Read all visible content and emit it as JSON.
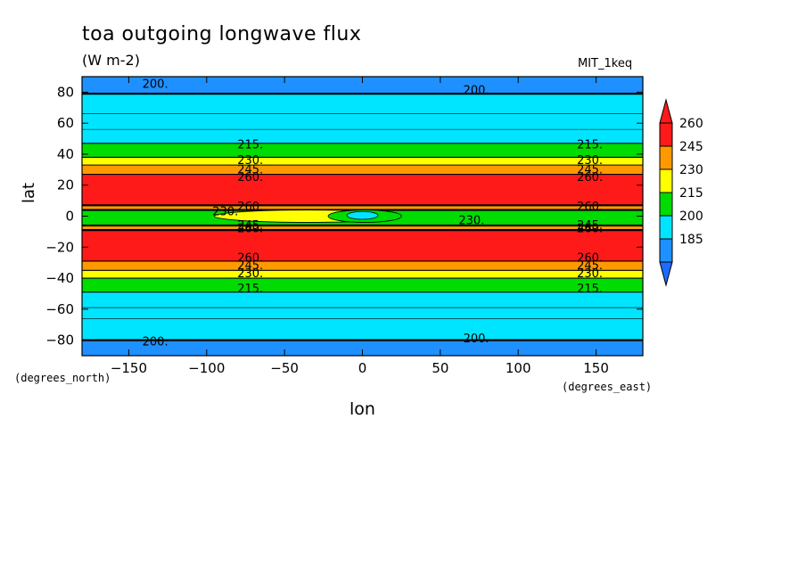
{
  "chart_data": {
    "type": "heatmap",
    "title": "toa outgoing longwave flux",
    "units": "(W m-2)",
    "run_label": "MIT_1keq",
    "xlabel": "lon",
    "ylabel": "lat",
    "x_units_label": "(degrees_east)",
    "y_units_label": "(degrees_north)",
    "xlim": [
      -180,
      180
    ],
    "ylim": [
      -90,
      90
    ],
    "x_ticks": [
      -150,
      -100,
      -50,
      0,
      50,
      100,
      150
    ],
    "y_ticks": [
      80,
      60,
      40,
      20,
      0,
      -20,
      -40,
      -60,
      -80
    ],
    "colorbar": {
      "levels": [
        185,
        200,
        215,
        230,
        245,
        260
      ],
      "colors": [
        "#1e90ff",
        "#00e5ff",
        "#00dc00",
        "#ffff00",
        "#ff9900",
        "#ff1a1a"
      ],
      "under_color": "#1e6cff",
      "over_color": "#ff1a1a"
    },
    "zonal_bands": [
      {
        "lat_from": 79,
        "lat_to": 90,
        "value_class": "<200",
        "color": "#1e90ff"
      },
      {
        "lat_from": 47,
        "lat_to": 79,
        "value_class": "200-215",
        "color": "#00e5ff"
      },
      {
        "lat_from": 38,
        "lat_to": 47,
        "value_class": "215-230",
        "color": "#00dc00"
      },
      {
        "lat_from": 33,
        "lat_to": 38,
        "value_class": "230-245",
        "color": "#ffff00"
      },
      {
        "lat_from": 27,
        "lat_to": 33,
        "value_class": "245-260",
        "color": "#ff9900"
      },
      {
        "lat_from": 7,
        "lat_to": 27,
        "value_class": ">260",
        "color": "#ff1a1a"
      },
      {
        "lat_from": 4,
        "lat_to": 7,
        "value_class": "245-260",
        "color": "#ff9900"
      },
      {
        "lat_from": -6,
        "lat_to": 4,
        "value_class": "215-230",
        "color": "#00dc00"
      },
      {
        "lat_from": -9,
        "lat_to": -6,
        "value_class": "245-260",
        "color": "#ff9900"
      },
      {
        "lat_from": -29,
        "lat_to": -9,
        "value_class": ">260",
        "color": "#ff1a1a"
      },
      {
        "lat_from": -35,
        "lat_to": -29,
        "value_class": "245-260",
        "color": "#ff9900"
      },
      {
        "lat_from": -40,
        "lat_to": -35,
        "value_class": "230-245",
        "color": "#ffff00"
      },
      {
        "lat_from": -49,
        "lat_to": -40,
        "value_class": "215-230",
        "color": "#00dc00"
      },
      {
        "lat_from": -80,
        "lat_to": -49,
        "value_class": "200-215",
        "color": "#00e5ff"
      },
      {
        "lat_from": -90,
        "lat_to": -80,
        "value_class": "<200",
        "color": "#1e90ff"
      }
    ],
    "equatorial_features": [
      {
        "type": "region",
        "lon_range": [
          -95,
          25
        ],
        "lat_range": [
          -4,
          4
        ],
        "value_class": "230-245",
        "color": "#ffff00"
      },
      {
        "type": "region",
        "lon_range": [
          -22,
          25
        ],
        "lat_range": [
          -4,
          4
        ],
        "value_class": "215-230",
        "color": "#00dc00"
      },
      {
        "type": "region",
        "lon_range": [
          -10,
          10
        ],
        "lat_range": [
          -2,
          3
        ],
        "value_class": "200-215",
        "color": "#00e5ff"
      }
    ],
    "contour_labels": [
      {
        "text": "200.",
        "lon": -133,
        "lat": 85
      },
      {
        "text": "200.",
        "lon": 73,
        "lat": 81
      },
      {
        "text": "215.",
        "lon": -72,
        "lat": 46
      },
      {
        "text": "215.",
        "lon": 146,
        "lat": 46
      },
      {
        "text": "230.",
        "lon": -72,
        "lat": 36
      },
      {
        "text": "230.",
        "lon": 146,
        "lat": 36
      },
      {
        "text": "245.",
        "lon": -72,
        "lat": 30
      },
      {
        "text": "245.",
        "lon": 146,
        "lat": 30
      },
      {
        "text": "260.",
        "lon": -72,
        "lat": 25
      },
      {
        "text": "260.",
        "lon": 146,
        "lat": 25
      },
      {
        "text": "260.",
        "lon": -72,
        "lat": 6
      },
      {
        "text": "260.",
        "lon": 146,
        "lat": 6
      },
      {
        "text": "230.",
        "lon": -88,
        "lat": 3
      },
      {
        "text": "230.",
        "lon": 70,
        "lat": -3
      },
      {
        "text": "245.",
        "lon": -72,
        "lat": -6
      },
      {
        "text": "245.",
        "lon": 146,
        "lat": -6
      },
      {
        "text": "260.",
        "lon": -72,
        "lat": -8
      },
      {
        "text": "260.",
        "lon": 146,
        "lat": -8
      },
      {
        "text": "260.",
        "lon": -72,
        "lat": -27
      },
      {
        "text": "260.",
        "lon": 146,
        "lat": -27
      },
      {
        "text": "245.",
        "lon": -72,
        "lat": -32
      },
      {
        "text": "245.",
        "lon": 146,
        "lat": -32
      },
      {
        "text": "230.",
        "lon": -72,
        "lat": -37
      },
      {
        "text": "230.",
        "lon": 146,
        "lat": -37
      },
      {
        "text": "215.",
        "lon": -72,
        "lat": -47
      },
      {
        "text": "215.",
        "lon": 146,
        "lat": -47
      },
      {
        "text": "200.",
        "lon": -133,
        "lat": -81
      },
      {
        "text": "200.",
        "lon": 73,
        "lat": -79
      }
    ]
  }
}
